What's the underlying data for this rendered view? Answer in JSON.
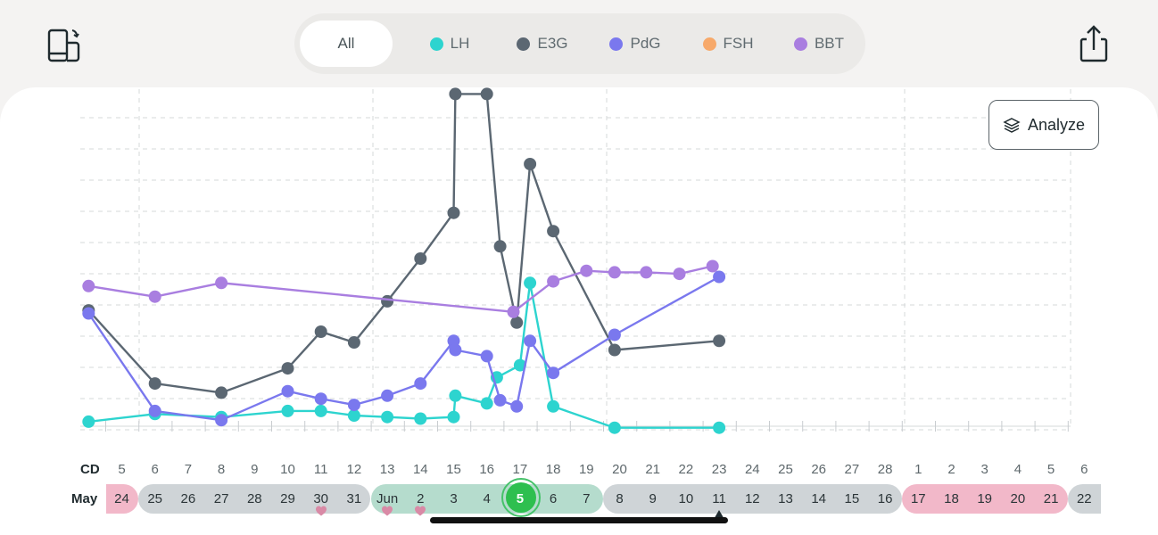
{
  "toolbar": {
    "device_icon": "phone-rotate-icon",
    "share_icon": "share-icon"
  },
  "filters": [
    {
      "label": "All",
      "active": true,
      "color": null
    },
    {
      "label": "LH",
      "active": false,
      "color": "#2dd4cf"
    },
    {
      "label": "E3G",
      "active": false,
      "color": "#5b6772"
    },
    {
      "label": "PdG",
      "active": false,
      "color": "#7a78ee"
    },
    {
      "label": "FSH",
      "active": false,
      "color": "#f7a96a"
    },
    {
      "label": "BBT",
      "active": false,
      "color": "#a97ee0"
    }
  ],
  "analyze": {
    "label": "Analyze",
    "icon": "layers-icon"
  },
  "timeline": {
    "cd_label": "CD",
    "month_label": "May",
    "cycle_days": [
      "5",
      "6",
      "7",
      "8",
      "9",
      "10",
      "11",
      "12",
      "13",
      "14",
      "15",
      "16",
      "17",
      "18",
      "19",
      "20",
      "21",
      "22",
      "23",
      "24",
      "25",
      "26",
      "27",
      "28",
      "1",
      "2",
      "3",
      "4",
      "5",
      "6"
    ],
    "dates": [
      "24",
      "25",
      "26",
      "27",
      "28",
      "29",
      "30",
      "31",
      "Jun",
      "2",
      "3",
      "4",
      "5",
      "6",
      "7",
      "8",
      "9",
      "10",
      "11",
      "12",
      "13",
      "14",
      "15",
      "16",
      "17",
      "18",
      "19",
      "20",
      "21",
      "22"
    ],
    "today_index": 12,
    "intercourse_indices": [
      6,
      8,
      9
    ],
    "marker_index": 18,
    "colors": {
      "period": "#f2b8c9",
      "neutral": "#cfd4d7",
      "fertile": "#b5dccd",
      "today": "#2ebf4f",
      "heart": "#d98aa6"
    }
  },
  "chart_data": {
    "type": "line",
    "x_axis": "timeline day index (0 = CD 5 / May 24)",
    "y_range": [
      0,
      110
    ],
    "series": [
      {
        "name": "LH",
        "color": "#2dd4cf",
        "points": [
          [
            -1,
            1.5
          ],
          [
            1,
            4
          ],
          [
            3,
            3
          ],
          [
            5,
            5
          ],
          [
            6,
            5
          ],
          [
            7,
            3.5
          ],
          [
            8,
            3
          ],
          [
            9,
            2.5
          ],
          [
            10,
            3
          ],
          [
            10.05,
            10
          ],
          [
            11,
            7.5
          ],
          [
            11.3,
            16
          ],
          [
            12,
            20
          ],
          [
            12.3,
            47
          ],
          [
            13,
            6.5
          ],
          [
            14.85,
            -0.5
          ],
          [
            18,
            -0.5
          ]
        ]
      },
      {
        "name": "E3G",
        "color": "#5b6772",
        "points": [
          [
            -1,
            38
          ],
          [
            1,
            14
          ],
          [
            3,
            11
          ],
          [
            5,
            19
          ],
          [
            6,
            31
          ],
          [
            7,
            27.5
          ],
          [
            8,
            41
          ],
          [
            9,
            55
          ],
          [
            10,
            70
          ],
          [
            10.05,
            109
          ],
          [
            11,
            109
          ],
          [
            11.4,
            59
          ],
          [
            11.9,
            34
          ],
          [
            12.3,
            86
          ],
          [
            13,
            64
          ],
          [
            14.85,
            25
          ],
          [
            18,
            28
          ]
        ]
      },
      {
        "name": "PdG",
        "color": "#7a78ee",
        "points": [
          [
            -1,
            37
          ],
          [
            1,
            5
          ],
          [
            3,
            2
          ],
          [
            5,
            11.5
          ],
          [
            6,
            9
          ],
          [
            7,
            7
          ],
          [
            8,
            10
          ],
          [
            9,
            14
          ],
          [
            10,
            28
          ],
          [
            10.05,
            25
          ],
          [
            11,
            23
          ],
          [
            11.4,
            8.5
          ],
          [
            11.9,
            6.5
          ],
          [
            12.3,
            28
          ],
          [
            13,
            17.5
          ],
          [
            14.85,
            30
          ],
          [
            18,
            49
          ]
        ]
      },
      {
        "name": "BBT",
        "color": "#a97ee0",
        "points": [
          [
            -1,
            46
          ],
          [
            1,
            42.5
          ],
          [
            3,
            47
          ],
          [
            11.8,
            37.5
          ],
          [
            13,
            47.5
          ],
          [
            14,
            51
          ],
          [
            14.85,
            50.5
          ],
          [
            15.8,
            50.5
          ],
          [
            16.8,
            50
          ],
          [
            17.8,
            52.5
          ]
        ]
      }
    ]
  }
}
